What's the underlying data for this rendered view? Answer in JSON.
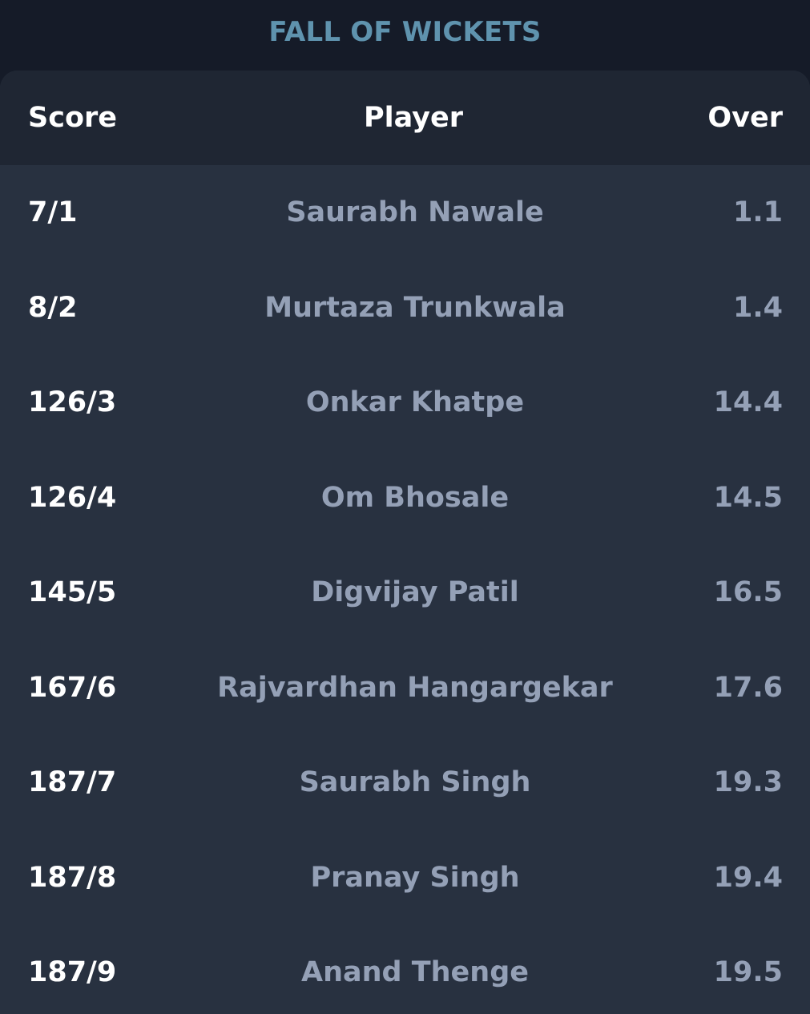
{
  "section": {
    "title": "FALL OF WICKETS"
  },
  "table": {
    "headers": {
      "score": "Score",
      "player": "Player",
      "over": "Over"
    },
    "rows": [
      {
        "score": "7/1",
        "player": "Saurabh Nawale",
        "over": "1.1"
      },
      {
        "score": "8/2",
        "player": "Murtaza Trunkwala",
        "over": "1.4"
      },
      {
        "score": "126/3",
        "player": "Onkar Khatpe",
        "over": "14.4"
      },
      {
        "score": "126/4",
        "player": "Om Bhosale",
        "over": "14.5"
      },
      {
        "score": "145/5",
        "player": "Digvijay Patil",
        "over": "16.5"
      },
      {
        "score": "167/6",
        "player": "Rajvardhan Hangargekar",
        "over": "17.6"
      },
      {
        "score": "187/7",
        "player": "Saurabh Singh",
        "over": "19.3"
      },
      {
        "score": "187/8",
        "player": "Pranay Singh",
        "over": "19.4"
      },
      {
        "score": "187/9",
        "player": "Anand Thenge",
        "over": "19.5"
      }
    ]
  },
  "colors": {
    "title": "#5f93ae",
    "page_bg": "#151b28",
    "header_bg": "#1f2633",
    "card_bg": "#283140",
    "score_text": "#ffffff",
    "muted_text": "#94a0b6"
  }
}
